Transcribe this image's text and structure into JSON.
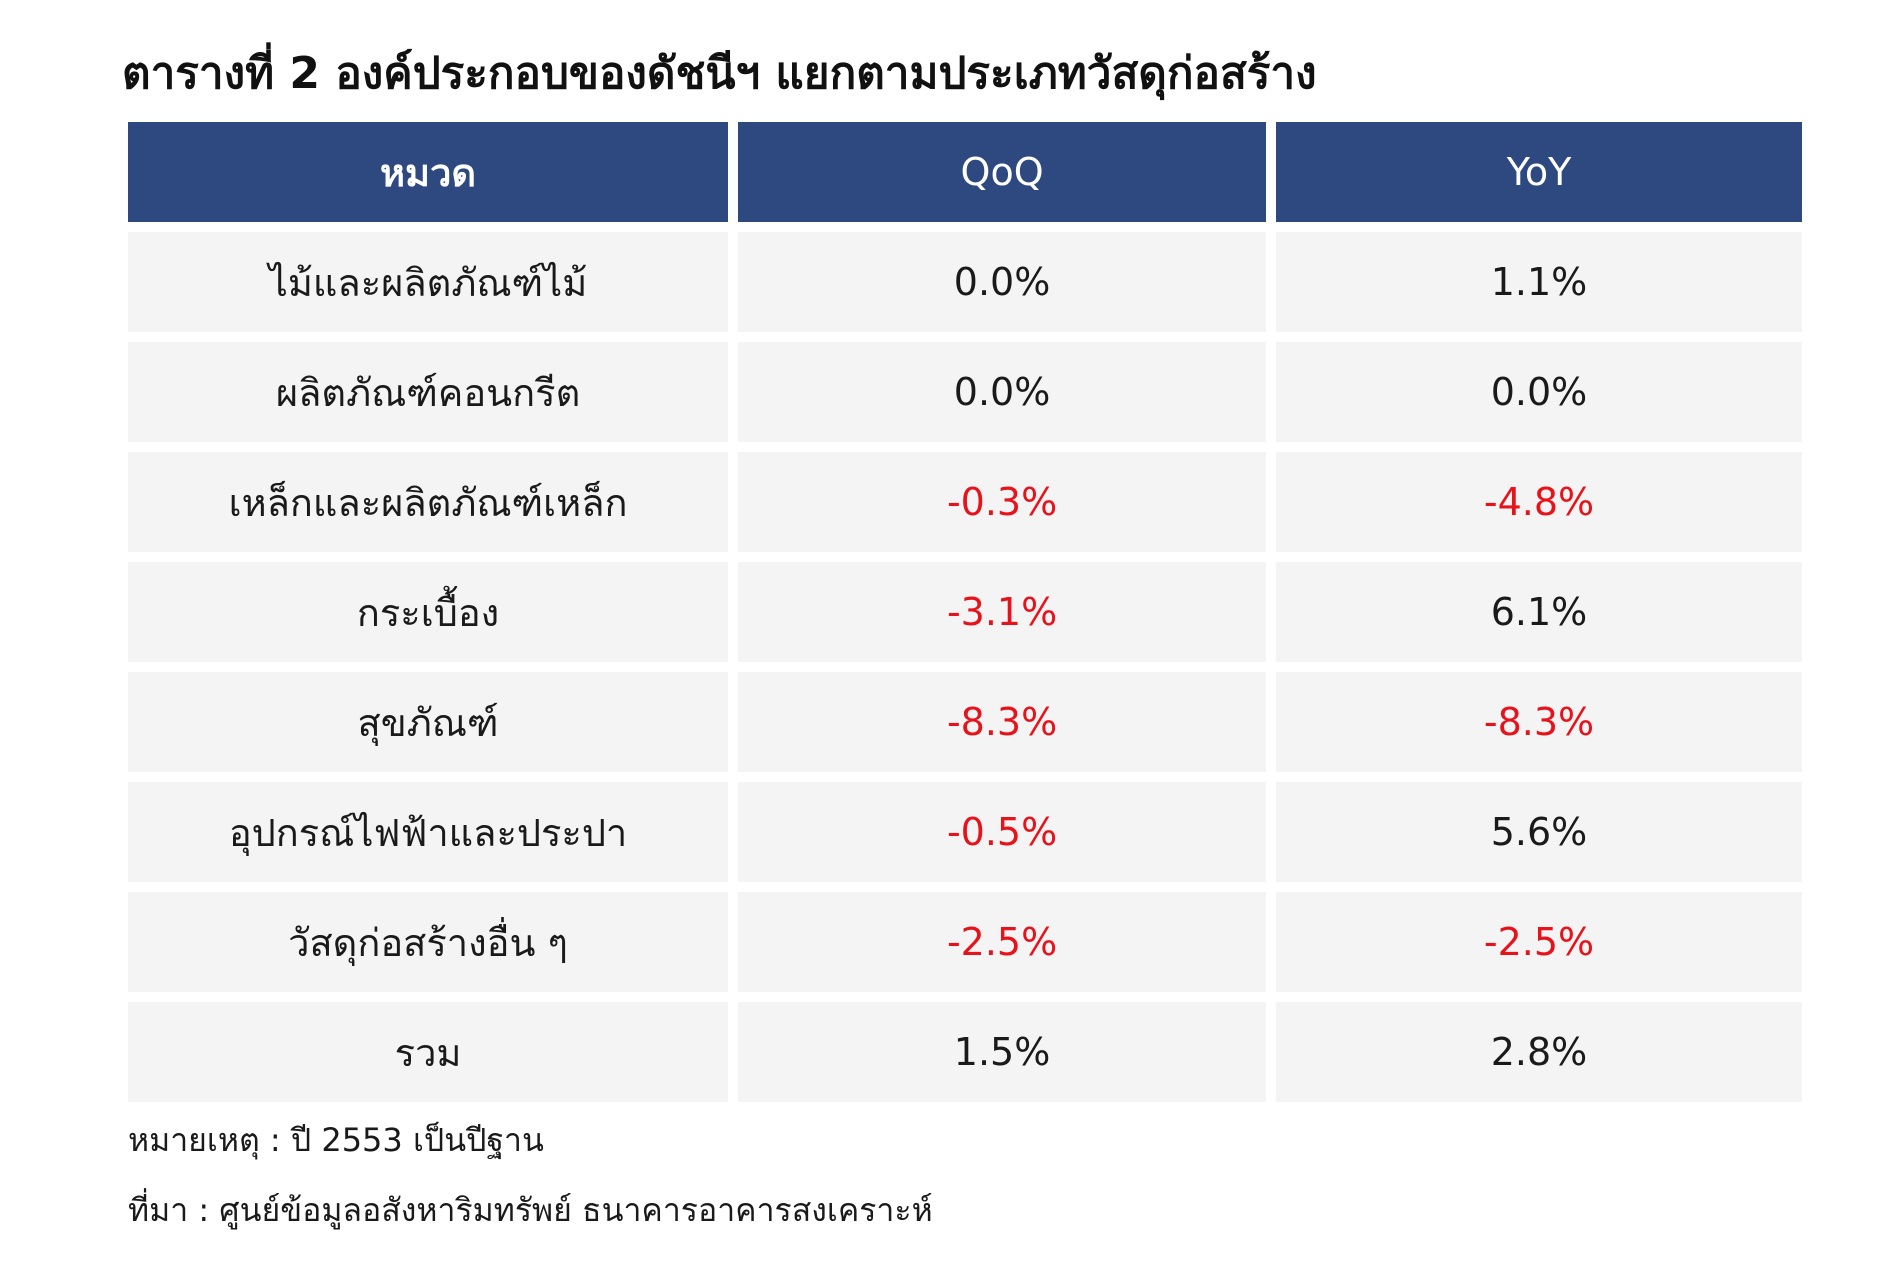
{
  "title": "ตารางที่ 2 องค์ประกอบของดัชนีฯ แยกตามประเภทวัสดุก่อสร้าง",
  "table": {
    "headers": [
      "หมวด",
      "QoQ",
      "YoY"
    ],
    "rows": [
      {
        "category": "ไม้และผลิตภัณฑ์ไม้",
        "qoq": "0.0%",
        "yoy": "1.1%"
      },
      {
        "category": "ผลิตภัณฑ์คอนกรีต",
        "qoq": "0.0%",
        "yoy": "0.0%"
      },
      {
        "category": "เหล็กและผลิตภัณฑ์เหล็ก",
        "qoq": "-0.3%",
        "yoy": "-4.8%"
      },
      {
        "category": "กระเบื้อง",
        "qoq": "-3.1%",
        "yoy": "6.1%"
      },
      {
        "category": "สุขภัณฑ์",
        "qoq": "-8.3%",
        "yoy": "-8.3%"
      },
      {
        "category": "อุปกรณ์ไฟฟ้าและประปา",
        "qoq": "-0.5%",
        "yoy": "5.6%"
      },
      {
        "category": "วัสดุก่อสร้างอื่น ๆ",
        "qoq": "-2.5%",
        "yoy": "-2.5%"
      },
      {
        "category": "รวม",
        "qoq": "1.5%",
        "yoy": "2.8%"
      }
    ]
  },
  "notes": {
    "remark": "หมายเหตุ : ปี 2553 เป็นปีฐาน",
    "source": "ที่มา : ศูนย์ข้อมูลอสังหาริมทรัพย์ ธนาคารอาคารสงเคราะห์"
  },
  "colors": {
    "header_bg": "#2e4880",
    "row_bg": "#f4f4f4",
    "negative_text": "#e8121b"
  }
}
